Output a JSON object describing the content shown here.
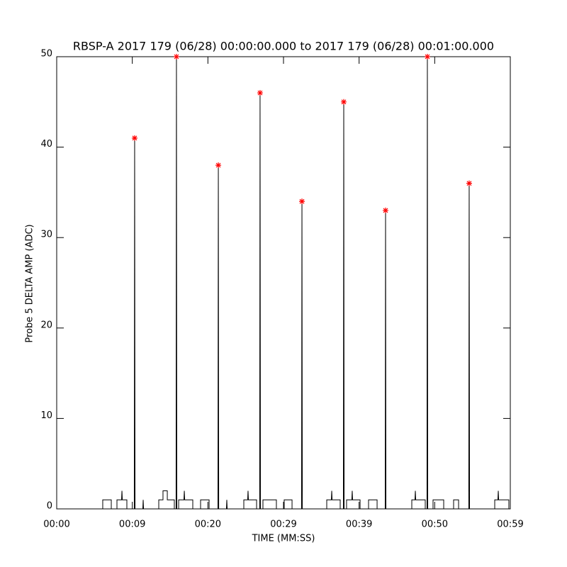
{
  "chart_data": {
    "type": "line",
    "title": "RBSP-A 2017 179 (06/28) 00:00:00.000 to 2017 179 (06/28) 00:01:00.000",
    "x_label": "TIME (MM:SS)",
    "y_label": "Probe 5 DELTA AMP (ADC)",
    "xlim": [
      0,
      60
    ],
    "ylim": [
      0,
      50
    ],
    "xticks": [
      {
        "value": 0,
        "label": "00:00"
      },
      {
        "value": 10,
        "label": "00:09"
      },
      {
        "value": 20,
        "label": "00:20"
      },
      {
        "value": 30,
        "label": "00:29"
      },
      {
        "value": 40,
        "label": "00:39"
      },
      {
        "value": 50,
        "label": "00:50"
      },
      {
        "value": 60,
        "label": "00:59"
      }
    ],
    "yticks": [
      0,
      10,
      20,
      30,
      40,
      50
    ],
    "series": [
      {
        "color": "#000000",
        "x": [
          0,
          6.09,
          6.09,
          7.22,
          7.22,
          7.97,
          7.97,
          8.58,
          8.63,
          8.68,
          9.28,
          9.28,
          10.26,
          10.31,
          10.36,
          11.39,
          11.44,
          11.49,
          13.5,
          13.5,
          14.06,
          14.06,
          14.63,
          14.63,
          15.56,
          15.56,
          15.79,
          15.84,
          15.89,
          16.13,
          16.13,
          16.83,
          16.88,
          16.93,
          18.0,
          18.0,
          19.03,
          19.03,
          20.16,
          20.16,
          21.33,
          21.38,
          21.43,
          22.45,
          22.5,
          22.55,
          24.75,
          24.75,
          25.26,
          25.31,
          25.36,
          26.44,
          26.44,
          26.85,
          26.9,
          26.95,
          27.28,
          27.28,
          29.06,
          29.06,
          30.09,
          30.09,
          31.13,
          31.13,
          32.39,
          32.44,
          32.49,
          35.72,
          35.72,
          36.33,
          36.38,
          36.43,
          37.5,
          37.5,
          37.92,
          37.97,
          38.02,
          38.34,
          38.34,
          39.04,
          39.09,
          39.14,
          40.13,
          40.13,
          41.25,
          41.25,
          42.38,
          42.38,
          43.45,
          43.5,
          43.55,
          46.97,
          46.97,
          47.39,
          47.44,
          47.49,
          48.75,
          48.75,
          48.98,
          49.03,
          49.08,
          49.78,
          49.78,
          51.19,
          51.19,
          52.5,
          52.5,
          53.16,
          53.16,
          54.51,
          54.56,
          54.61,
          57.94,
          57.94,
          58.36,
          58.41,
          58.46,
          59.81,
          59.81,
          60
        ],
        "values": [
          0,
          0,
          1,
          1,
          0,
          0,
          1,
          1,
          2,
          1,
          1,
          0,
          0,
          41,
          0,
          0,
          1,
          0,
          0,
          1,
          1,
          2,
          2,
          1,
          1,
          0,
          0,
          50,
          0,
          0,
          1,
          1,
          2,
          1,
          1,
          0,
          0,
          1,
          1,
          0,
          0,
          38,
          0,
          0,
          1,
          0,
          0,
          1,
          1,
          2,
          1,
          1,
          0,
          0,
          46,
          0,
          0,
          1,
          1,
          0,
          0,
          1,
          1,
          0,
          0,
          34,
          0,
          0,
          1,
          1,
          2,
          1,
          1,
          0,
          0,
          45,
          0,
          0,
          1,
          1,
          2,
          1,
          1,
          0,
          0,
          1,
          1,
          0,
          0,
          33,
          0,
          0,
          1,
          1,
          2,
          1,
          1,
          0,
          0,
          50,
          0,
          0,
          1,
          1,
          0,
          0,
          1,
          1,
          0,
          0,
          36,
          0,
          0,
          1,
          1,
          2,
          1,
          1,
          0,
          0
        ]
      },
      {
        "type": "scatter",
        "marker": "star",
        "color": "#ff0000",
        "x": [
          10.31,
          15.84,
          21.38,
          26.9,
          32.44,
          37.97,
          43.5,
          49.03,
          54.56
        ],
        "values": [
          41,
          50,
          38,
          46,
          34,
          45,
          33,
          50,
          36
        ]
      }
    ]
  }
}
